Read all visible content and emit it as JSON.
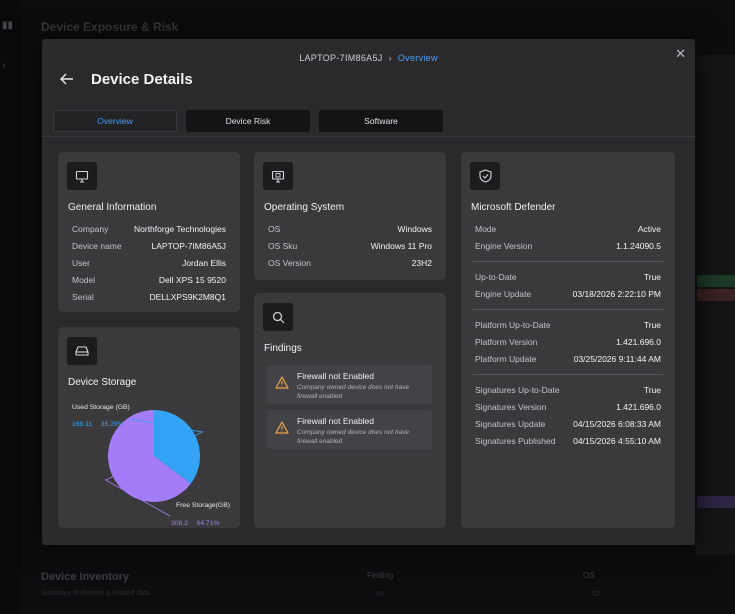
{
  "background": {
    "title": "Device Exposure & Risk",
    "inventory_title": "Device Inventory",
    "inventory_sub": "Summary of devices & related data",
    "col_finding": "Finding",
    "col_os": "OS",
    "col_finding_val": "66",
    "col_os_val": "52"
  },
  "modal": {
    "breadcrumb": {
      "device": "LAPTOP-7IM86A5J",
      "current": "Overview"
    },
    "title": "Device Details",
    "tabs": [
      {
        "label": "Overview",
        "selected": true
      },
      {
        "label": "Device Risk",
        "selected": false
      },
      {
        "label": "Software",
        "selected": false
      }
    ]
  },
  "general": {
    "title": "General Information",
    "icon": "monitor-icon",
    "rows": [
      {
        "key": "Company",
        "value": "Northforge Technologies"
      },
      {
        "key": "Device name",
        "value": "LAPTOP-7IM86A5J"
      },
      {
        "key": "User",
        "value": "Jordan Ellis"
      },
      {
        "key": "Model",
        "value": "Dell XPS 15 9520"
      },
      {
        "key": "Serial",
        "value": "DELLXPS9K2M8Q1"
      }
    ]
  },
  "os": {
    "title": "Operating System",
    "icon": "os-icon",
    "rows": [
      {
        "key": "OS",
        "value": "Windows"
      },
      {
        "key": "OS Sku",
        "value": "Windows 11 Pro"
      },
      {
        "key": "OS Version",
        "value": "23H2"
      }
    ]
  },
  "findings": {
    "title": "Findings",
    "icon": "search-icon",
    "items": [
      {
        "title": "Firewall not Enabled",
        "desc": "Company owned device does not have firewall enabled"
      },
      {
        "title": "Firewall not Enabled",
        "desc": "Company owned device does not have firewall enabled"
      }
    ]
  },
  "storage": {
    "title": "Device Storage",
    "icon": "storage-icon",
    "chart_data": {
      "type": "pie",
      "series": [
        {
          "name": "Used Storage (GB)",
          "value": 168.11,
          "percent": "35.29%",
          "color": "#35a3f5"
        },
        {
          "name": "Free Storage(GB)",
          "value": 308.2,
          "percent": "64.71%",
          "color": "#a57cf8"
        }
      ]
    }
  },
  "defender": {
    "title": "Microsoft Defender",
    "icon": "shield-icon",
    "groups": [
      [
        {
          "key": "Mode",
          "value": "Active"
        },
        {
          "key": "Engine Version",
          "value": "1.1.24090.5"
        }
      ],
      [
        {
          "key": "Up-to-Date",
          "value": "True"
        },
        {
          "key": "Engine Update",
          "value": "03/18/2026 2:22:10 PM"
        }
      ],
      [
        {
          "key": "Platform Up-to-Date",
          "value": "True"
        },
        {
          "key": "Platform Version",
          "value": "1.421.696.0"
        },
        {
          "key": "Platform Update",
          "value": "03/25/2026 9:11:44 AM"
        }
      ],
      [
        {
          "key": "Signatures Up-to-Date",
          "value": "True"
        },
        {
          "key": "Signatures Version",
          "value": "1.421.696.0"
        },
        {
          "key": "Signatures Update",
          "value": "04/15/2026 6:08:33 AM"
        },
        {
          "key": "Signatures Published",
          "value": "04/15/2026 4:55:10 AM"
        }
      ]
    ]
  }
}
